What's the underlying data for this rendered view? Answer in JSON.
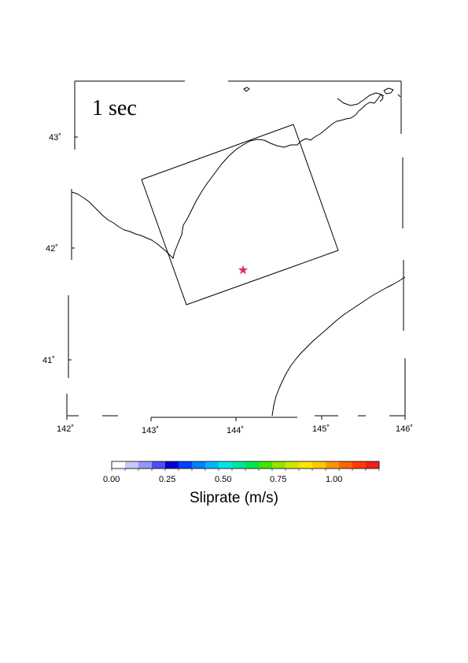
{
  "time_label": "1 sec",
  "latitude_labels": [
    "43˚",
    "42˚",
    "41˚"
  ],
  "longitude_labels": [
    "142˚",
    "143˚",
    "144˚",
    "145˚",
    "146˚"
  ],
  "epicenter_symbol": "star",
  "epicenter_color": "#d6336c",
  "colorbar": {
    "title": "Sliprate (m/s)",
    "min": 0.0,
    "max": 1.2,
    "tick_labels": [
      "0.00",
      "0.25",
      "0.50",
      "0.75",
      "1.00"
    ],
    "colors": [
      "#ffffff",
      "#c8c8ff",
      "#9696ff",
      "#5050f0",
      "#0000d0",
      "#0040ff",
      "#0080ff",
      "#00b4ff",
      "#00e6e6",
      "#00e6a0",
      "#00e650",
      "#40e600",
      "#90e600",
      "#d0e600",
      "#ffe600",
      "#ffc800",
      "#ff9600",
      "#ff6400",
      "#ff3c00",
      "#f01e1e"
    ]
  }
}
